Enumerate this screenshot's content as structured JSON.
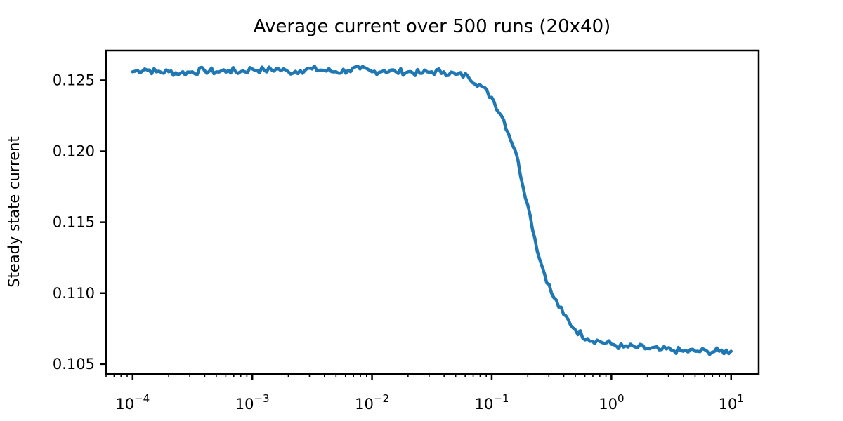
{
  "chart_data": {
    "type": "line",
    "title": "Average current over 500 runs (20x40)",
    "xlabel": "",
    "ylabel": "Steady state current",
    "xscale": "log",
    "xlim": [
      6e-05,
      17
    ],
    "ylim": [
      0.1043,
      0.1271
    ],
    "x_ticks": [
      {
        "value": 0.0001,
        "base": "10",
        "exp": "−4"
      },
      {
        "value": 0.001,
        "base": "10",
        "exp": "−3"
      },
      {
        "value": 0.01,
        "base": "10",
        "exp": "−2"
      },
      {
        "value": 0.1,
        "base": "10",
        "exp": "−1"
      },
      {
        "value": 1,
        "base": "10",
        "exp": "0"
      },
      {
        "value": 10,
        "base": "10",
        "exp": "1"
      }
    ],
    "y_ticks": [
      {
        "value": 0.105,
        "label": "0.105"
      },
      {
        "value": 0.11,
        "label": "0.110"
      },
      {
        "value": 0.115,
        "label": "0.115"
      },
      {
        "value": 0.12,
        "label": "0.120"
      },
      {
        "value": 0.125,
        "label": "0.125"
      }
    ],
    "grid": false,
    "series": [
      {
        "color": "#1f77b4",
        "x": [
          0.0001,
          0.000126,
          0.000158,
          0.0002,
          0.000251,
          0.000316,
          0.000398,
          0.000501,
          0.000631,
          0.000794,
          0.001,
          0.00126,
          0.00158,
          0.002,
          0.00251,
          0.00316,
          0.00398,
          0.00501,
          0.00631,
          0.00794,
          0.01,
          0.0126,
          0.0158,
          0.02,
          0.0251,
          0.0316,
          0.0398,
          0.0501,
          0.0631,
          0.0794,
          0.1,
          0.126,
          0.158,
          0.2,
          0.251,
          0.316,
          0.398,
          0.501,
          0.631,
          0.794,
          1.0,
          1.26,
          1.58,
          2.0,
          2.51,
          3.16,
          3.98,
          5.01,
          6.31,
          7.94,
          10.0
        ],
        "y": [
          0.1256,
          0.1258,
          0.1256,
          0.1256,
          0.1255,
          0.1256,
          0.1257,
          0.1256,
          0.1257,
          0.1256,
          0.1258,
          0.1257,
          0.1258,
          0.1256,
          0.1257,
          0.1258,
          0.1257,
          0.1256,
          0.1257,
          0.1258,
          0.1256,
          0.1257,
          0.1256,
          0.1256,
          0.1255,
          0.1256,
          0.1256,
          0.1254,
          0.1253,
          0.1247,
          0.1238,
          0.1222,
          0.12,
          0.1162,
          0.1124,
          0.11,
          0.1085,
          0.1074,
          0.1068,
          0.1066,
          0.1064,
          0.1062,
          0.1062,
          0.1061,
          0.106,
          0.106,
          0.1059,
          0.1059,
          0.1059,
          0.1059,
          0.1059
        ]
      }
    ]
  }
}
